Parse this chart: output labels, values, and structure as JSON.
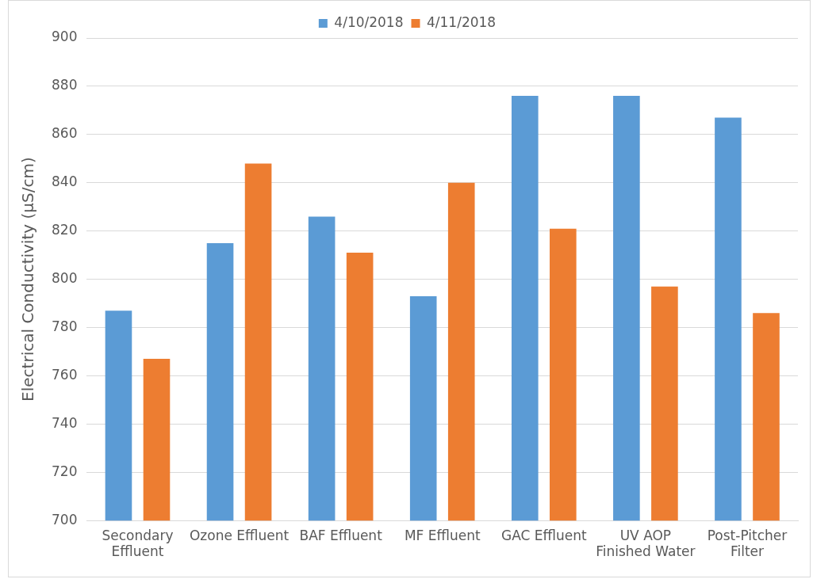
{
  "chart_data": {
    "type": "bar",
    "categories": [
      "Secondary Effluent",
      "Ozone Effluent",
      "BAF Effluent",
      "MF Effluent",
      "GAC Effluent",
      "UV AOP Finished Water",
      "Post-Pitcher Filter"
    ],
    "series": [
      {
        "name": "4/10/2018",
        "color": "#5b9bd5",
        "values": [
          787,
          815,
          826,
          793,
          876,
          876,
          867
        ]
      },
      {
        "name": "4/11/2018",
        "color": "#ed7d31",
        "values": [
          767,
          848,
          811,
          840,
          821,
          797,
          786
        ]
      }
    ],
    "ylabel": "Electrical Conductivity (µS/cm)",
    "ylim": [
      700,
      900
    ],
    "yticks": [
      700,
      720,
      740,
      760,
      780,
      800,
      820,
      840,
      860,
      880,
      900
    ],
    "grid": "y",
    "legend": "top"
  }
}
